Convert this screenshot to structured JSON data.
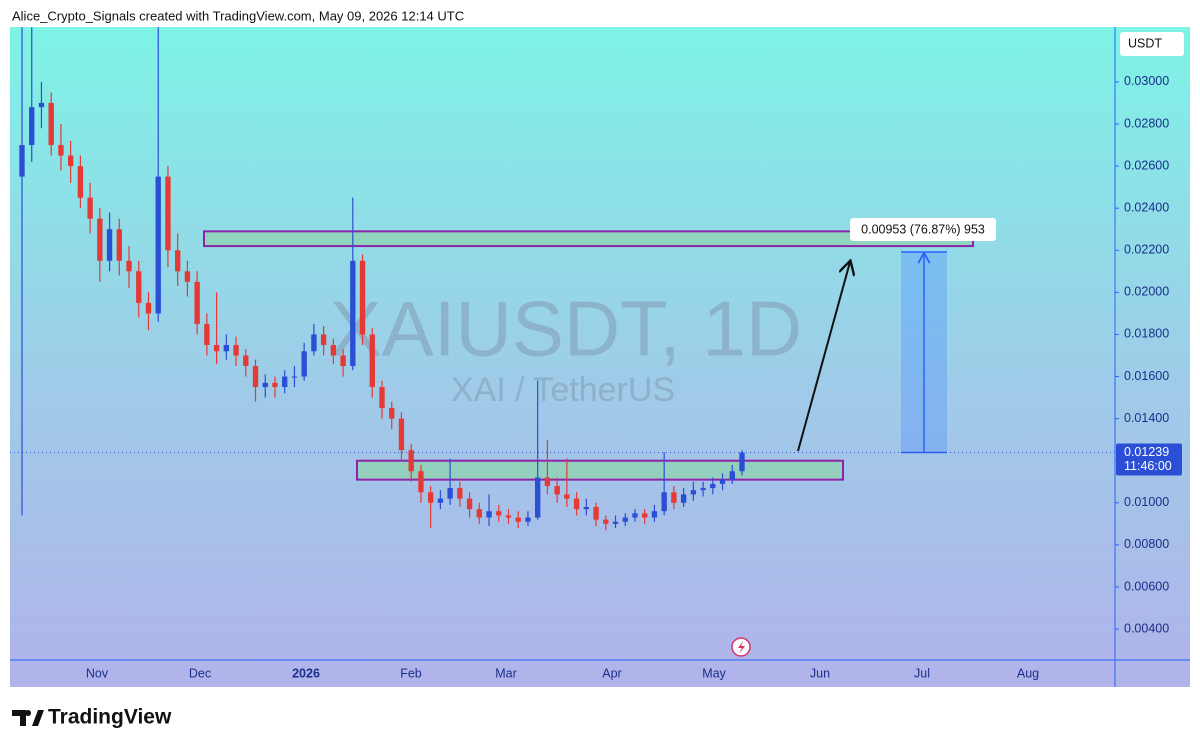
{
  "header": "Alice_Crypto_Signals created with TradingView.com, May 09, 2026 12:14 UTC",
  "chart_data": {
    "type": "candlestick",
    "watermark_title": "XAIUSDT, 1D",
    "watermark_subtitle": "XAI / TetherUS",
    "currency": "USDT",
    "up_color": "#2a4fd6",
    "down_color": "#e53935",
    "ylim": [
      0.00253,
      0.03261
    ],
    "yticks": [
      {
        "value": 0.004,
        "label": "0.00400"
      },
      {
        "value": 0.006,
        "label": "0.00600"
      },
      {
        "value": 0.008,
        "label": "0.00800"
      },
      {
        "value": 0.01,
        "label": "0.01000"
      },
      {
        "value": 0.012,
        "label": "0.01200"
      },
      {
        "value": 0.014,
        "label": "0.01400"
      },
      {
        "value": 0.016,
        "label": "0.01600"
      },
      {
        "value": 0.018,
        "label": "0.01800"
      },
      {
        "value": 0.02,
        "label": "0.02000"
      },
      {
        "value": 0.022,
        "label": "0.02200"
      },
      {
        "value": 0.024,
        "label": "0.02400"
      },
      {
        "value": 0.026,
        "label": "0.02600"
      },
      {
        "value": 0.028,
        "label": "0.02800"
      },
      {
        "value": 0.03,
        "label": "0.03000"
      }
    ],
    "xtick_labels": [
      "Nov",
      "Dec",
      "2026",
      "Feb",
      "Mar",
      "Apr",
      "May",
      "Jun",
      "Jul",
      "Aug"
    ],
    "open": [
      0.0255,
      0.027,
      0.0288,
      0.029,
      0.027,
      0.0265,
      0.026,
      0.0245,
      0.0235,
      0.0215,
      0.023,
      0.0215,
      0.021,
      0.0195,
      0.019,
      0.0255,
      0.022,
      0.021,
      0.0205,
      0.0185,
      0.0175,
      0.0172,
      0.0175,
      0.017,
      0.0165,
      0.0155,
      0.0157,
      0.0155,
      0.016,
      0.016,
      0.0172,
      0.018,
      0.0175,
      0.017,
      0.0165,
      0.0215,
      0.018,
      0.0155,
      0.0145,
      0.014,
      0.0125,
      0.0115,
      0.0105,
      0.01,
      0.0102,
      0.0107,
      0.0102,
      0.0097,
      0.0093,
      0.0096,
      0.0094,
      0.0093,
      0.0091,
      0.0093,
      0.0112,
      0.0108,
      0.0104,
      0.0102,
      0.0097,
      0.0098,
      0.0092,
      0.009,
      0.0091,
      0.0093,
      0.0095,
      0.0093,
      0.0096,
      0.0105,
      0.01,
      0.0104,
      0.0106,
      0.0107,
      0.0109,
      0.0111,
      0.0115
    ],
    "high": [
      0.0326,
      0.0326,
      0.03,
      0.0295,
      0.028,
      0.0272,
      0.0265,
      0.0252,
      0.024,
      0.0238,
      0.0235,
      0.0222,
      0.0215,
      0.02,
      0.0326,
      0.026,
      0.0228,
      0.0215,
      0.021,
      0.019,
      0.02,
      0.018,
      0.0179,
      0.0173,
      0.0168,
      0.0161,
      0.016,
      0.0163,
      0.0165,
      0.0176,
      0.0185,
      0.0184,
      0.0178,
      0.0173,
      0.0245,
      0.0218,
      0.0183,
      0.0158,
      0.0148,
      0.0143,
      0.0128,
      0.0118,
      0.0108,
      0.0106,
      0.0121,
      0.011,
      0.0105,
      0.01,
      0.0104,
      0.0099,
      0.0097,
      0.0096,
      0.0096,
      0.0158,
      0.013,
      0.0112,
      0.0121,
      0.0105,
      0.0102,
      0.01,
      0.0094,
      0.0094,
      0.0095,
      0.0097,
      0.0097,
      0.0099,
      0.0124,
      0.0108,
      0.0107,
      0.011,
      0.011,
      0.0112,
      0.0114,
      0.0118,
      0.0125
    ],
    "low": [
      0.0094,
      0.0262,
      0.0278,
      0.0265,
      0.0258,
      0.0252,
      0.024,
      0.0228,
      0.0205,
      0.021,
      0.0208,
      0.0202,
      0.0188,
      0.0182,
      0.0186,
      0.0212,
      0.0203,
      0.0198,
      0.018,
      0.017,
      0.0166,
      0.0168,
      0.0165,
      0.016,
      0.0148,
      0.015,
      0.015,
      0.0152,
      0.0155,
      0.0158,
      0.017,
      0.017,
      0.0166,
      0.016,
      0.0163,
      0.0175,
      0.015,
      0.014,
      0.0135,
      0.012,
      0.011,
      0.01,
      0.0088,
      0.0097,
      0.0099,
      0.0098,
      0.0093,
      0.009,
      0.0089,
      0.0091,
      0.009,
      0.0088,
      0.0089,
      0.0092,
      0.0104,
      0.01,
      0.0098,
      0.0094,
      0.0094,
      0.0089,
      0.0087,
      0.0088,
      0.0089,
      0.0091,
      0.009,
      0.0091,
      0.0094,
      0.0097,
      0.0098,
      0.0101,
      0.0103,
      0.0104,
      0.0106,
      0.0109,
      0.0113
    ],
    "close": [
      0.027,
      0.0288,
      0.029,
      0.027,
      0.0265,
      0.026,
      0.0245,
      0.0235,
      0.0215,
      0.023,
      0.0215,
      0.021,
      0.0195,
      0.019,
      0.0255,
      0.022,
      0.021,
      0.0205,
      0.0185,
      0.0175,
      0.0172,
      0.0175,
      0.017,
      0.0165,
      0.0155,
      0.0157,
      0.0155,
      0.016,
      0.016,
      0.0172,
      0.018,
      0.0175,
      0.017,
      0.0165,
      0.0215,
      0.018,
      0.0155,
      0.0145,
      0.014,
      0.0125,
      0.0115,
      0.0105,
      0.01,
      0.0102,
      0.0107,
      0.0102,
      0.0097,
      0.0093,
      0.0096,
      0.0094,
      0.0093,
      0.0091,
      0.0093,
      0.0112,
      0.0108,
      0.0104,
      0.0102,
      0.0097,
      0.0098,
      0.0092,
      0.009,
      0.0091,
      0.0093,
      0.0095,
      0.0093,
      0.0096,
      0.0105,
      0.01,
      0.0104,
      0.0106,
      0.0107,
      0.0109,
      0.0111,
      0.0115,
      0.01239
    ],
    "last_price": 0.01239,
    "countdown": "11:46:00",
    "zones": [
      {
        "top": 0.0229,
        "bottom": 0.0222
      },
      {
        "top": 0.012,
        "bottom": 0.0111
      }
    ],
    "measure": {
      "from": 0.01239,
      "to": 0.02192,
      "label": "0.00953 (76.87%) 953"
    }
  },
  "footer": "TradingView"
}
